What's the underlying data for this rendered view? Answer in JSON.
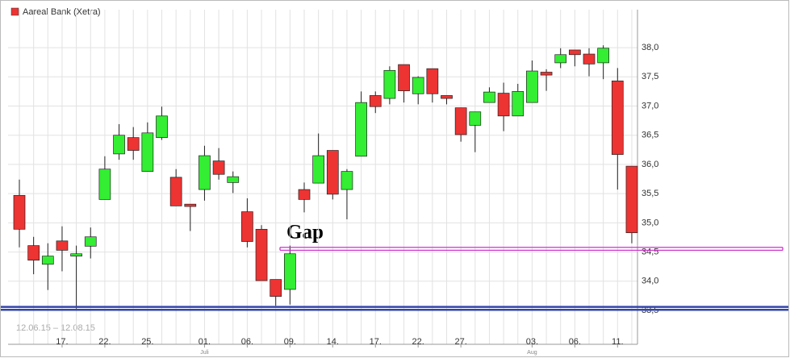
{
  "chart_data": {
    "type": "candlestick",
    "title": "Aareal Bank (Xetra)",
    "date_range": "12.06.15 – 12.08.15",
    "annotation": "Gap",
    "categories": [
      null,
      null,
      null,
      "17.",
      null,
      null,
      "22.",
      null,
      null,
      "25.",
      null,
      null,
      null,
      "01.",
      null,
      null,
      "06.",
      null,
      null,
      "09.",
      null,
      null,
      "14.",
      null,
      null,
      "17.",
      null,
      null,
      "22.",
      null,
      null,
      "27.",
      null,
      null,
      null,
      null,
      "03.",
      null,
      null,
      "06.",
      null,
      null,
      "11.",
      null
    ],
    "x_sublabels": [
      null,
      null,
      null,
      null,
      null,
      null,
      null,
      null,
      null,
      null,
      null,
      null,
      null,
      "Juli",
      null,
      null,
      null,
      null,
      null,
      null,
      null,
      null,
      null,
      null,
      null,
      null,
      null,
      null,
      null,
      null,
      null,
      null,
      null,
      null,
      null,
      null,
      "Aug",
      null,
      null,
      null,
      null,
      null,
      null,
      null
    ],
    "open": [
      35.47,
      34.61,
      34.29,
      34.69,
      34.43,
      34.6,
      35.4,
      36.18,
      36.46,
      35.88,
      36.46,
      35.78,
      35.32,
      35.57,
      36.06,
      35.69,
      35.19,
      34.89,
      34.03,
      33.86,
      35.57,
      35.68,
      36.24,
      35.57,
      36.14,
      37.18,
      37.13,
      37.71,
      37.21,
      37.64,
      37.18,
      36.97,
      36.67,
      37.06,
      37.22,
      36.83,
      37.06,
      37.58,
      37.74,
      37.96,
      37.89,
      37.74,
      37.43,
      35.97
    ],
    "high": [
      35.74,
      34.76,
      34.65,
      34.94,
      34.61,
      34.92,
      36.14,
      36.69,
      36.64,
      36.72,
      36.99,
      35.92,
      35.32,
      36.32,
      36.28,
      35.88,
      35.42,
      34.96,
      34.03,
      34.61,
      35.69,
      36.53,
      36.24,
      35.92,
      37.25,
      37.25,
      37.68,
      37.71,
      37.51,
      37.64,
      37.18,
      36.97,
      36.9,
      37.32,
      37.4,
      37.38,
      37.78,
      37.63,
      37.99,
      37.96,
      37.99,
      38.04,
      37.65,
      35.97
    ],
    "low": [
      34.58,
      34.12,
      33.85,
      34.17,
      33.53,
      34.39,
      35.4,
      36.08,
      36.08,
      35.88,
      36.42,
      35.29,
      34.86,
      35.38,
      35.74,
      35.51,
      34.58,
      34.01,
      33.58,
      33.6,
      35.18,
      35.68,
      35.4,
      35.06,
      36.14,
      36.88,
      37.03,
      37.06,
      37.03,
      37.06,
      37.03,
      36.39,
      36.21,
      37.06,
      36.57,
      36.83,
      37.06,
      37.26,
      37.65,
      37.68,
      37.51,
      37.46,
      35.57,
      34.65
    ],
    "close": [
      34.89,
      34.36,
      34.43,
      34.53,
      34.47,
      34.76,
      35.92,
      36.5,
      36.24,
      36.54,
      36.83,
      35.29,
      35.28,
      36.15,
      35.83,
      35.79,
      34.68,
      34.01,
      33.74,
      34.47,
      35.4,
      36.15,
      35.49,
      35.88,
      37.06,
      36.99,
      37.61,
      37.26,
      37.49,
      37.21,
      37.13,
      36.51,
      36.9,
      37.24,
      36.83,
      37.25,
      37.6,
      37.53,
      37.88,
      37.88,
      37.72,
      37.99,
      36.17,
      34.83
    ],
    "up_color": "#33ee33",
    "down_color": "#ee3333",
    "gap_lines": {
      "values": [
        34.58,
        34.53
      ],
      "color": "#cc33cc"
    },
    "support_lines": {
      "values": [
        33.56,
        33.51
      ],
      "color": "#3344aa"
    },
    "ylim": [
      32.92,
      38.65
    ],
    "yticks": [
      {
        "value": 33.5,
        "label": "33,5"
      },
      {
        "value": 34.0,
        "label": "34,0"
      },
      {
        "value": 34.5,
        "label": "34,5"
      },
      {
        "value": 35.0,
        "label": "35,0"
      },
      {
        "value": 35.5,
        "label": "35,5"
      },
      {
        "value": 36.0,
        "label": "36,0"
      },
      {
        "value": 36.5,
        "label": "36,5"
      },
      {
        "value": 37.0,
        "label": "37,0"
      },
      {
        "value": 37.5,
        "label": "37,5"
      },
      {
        "value": 38.0,
        "label": "38,0"
      }
    ],
    "grid": true
  }
}
